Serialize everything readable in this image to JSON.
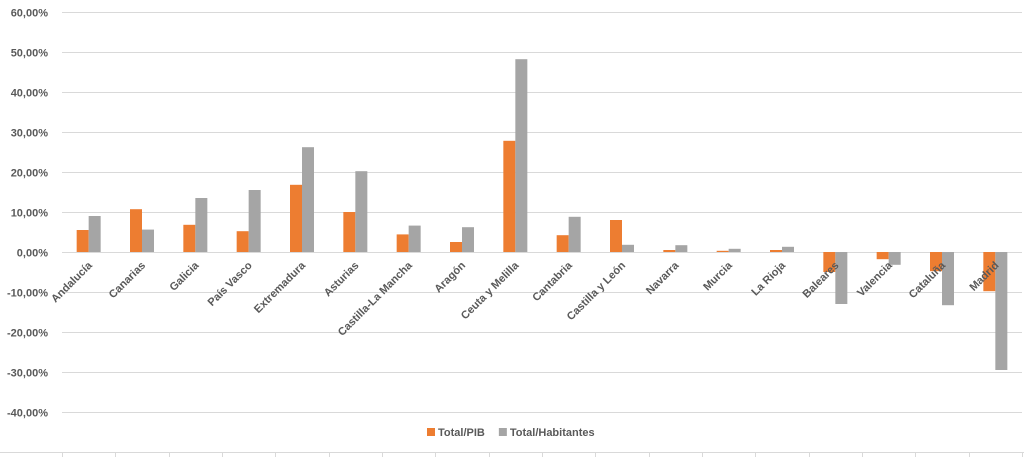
{
  "chart_data": {
    "type": "bar",
    "title": "",
    "xlabel": "",
    "ylabel": "",
    "ylim": [
      -0.4,
      0.6
    ],
    "y_ticks": [
      "60,00%",
      "50,00%",
      "40,00%",
      "30,00%",
      "20,00%",
      "10,00%",
      "0,00%",
      "-10,00%",
      "-20,00%",
      "-30,00%",
      "-40,00%"
    ],
    "y_tick_values": [
      0.6,
      0.5,
      0.4,
      0.3,
      0.2,
      0.1,
      0.0,
      -0.1,
      -0.2,
      -0.3,
      -0.4
    ],
    "grid": true,
    "legend_position": "bottom",
    "categories": [
      "Andalucía",
      "Canarias",
      "Galicia",
      "País Vasco",
      "Extremadura",
      "Asturias",
      "Castilla-La Mancha",
      "Aragón",
      "Ceuta y Melilla",
      "Cantabria",
      "Castilla y León",
      "Navarra",
      "Murcia",
      "La Rioja",
      "Baleares",
      "Valencia",
      "Cataluña",
      "Madrid"
    ],
    "series": [
      {
        "name": "Total/PIB",
        "color": "#ed7d31",
        "values": [
          0.055,
          0.107,
          0.068,
          0.052,
          0.168,
          0.1,
          0.044,
          0.025,
          0.278,
          0.042,
          0.08,
          0.005,
          0.003,
          0.005,
          -0.05,
          -0.018,
          -0.048,
          -0.098
        ]
      },
      {
        "name": "Total/Habitantes",
        "color": "#a5a5a5",
        "values": [
          0.09,
          0.056,
          0.135,
          0.155,
          0.262,
          0.202,
          0.066,
          0.062,
          0.482,
          0.088,
          0.018,
          0.017,
          0.008,
          0.013,
          -0.13,
          -0.032,
          -0.133,
          -0.295
        ]
      }
    ]
  }
}
